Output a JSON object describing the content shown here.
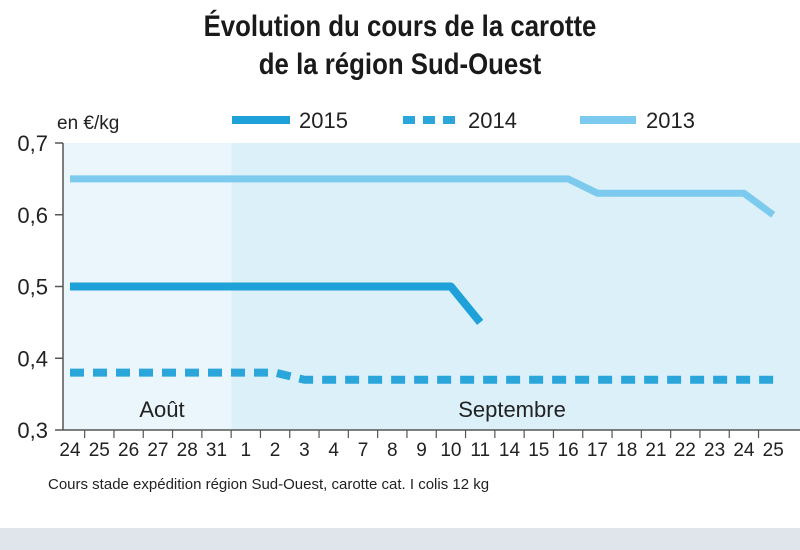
{
  "chart_data": {
    "type": "line",
    "title": [
      "Évolution du cours de la carotte",
      "de la région Sud-Ouest"
    ],
    "unit": "en €/kg",
    "categories": [
      "24",
      "25",
      "26",
      "27",
      "28",
      "31",
      "1",
      "2",
      "3",
      "4",
      "7",
      "8",
      "9",
      "10",
      "11",
      "14",
      "15",
      "16",
      "17",
      "18",
      "21",
      "22",
      "23",
      "24",
      "25"
    ],
    "months": [
      {
        "label": "Août",
        "from": 0,
        "to": 5
      },
      {
        "label": "Septembre",
        "from": 6,
        "to": 24
      }
    ],
    "ylim": [
      0.3,
      0.7
    ],
    "yticks": [
      "0,3",
      "0,4",
      "0,5",
      "0,6",
      "0,7"
    ],
    "yticks_values": [
      0.3,
      0.4,
      0.5,
      0.6,
      0.7
    ],
    "series": [
      {
        "name": "2015",
        "style": "solid",
        "color": "#1ea1d8",
        "values": [
          0.5,
          0.5,
          0.5,
          0.5,
          0.5,
          0.5,
          0.5,
          0.5,
          0.5,
          0.5,
          0.5,
          0.5,
          0.5,
          0.5,
          0.45,
          null,
          null,
          null,
          null,
          null,
          null,
          null,
          null,
          null,
          null
        ]
      },
      {
        "name": "2014",
        "style": "dashed",
        "color": "#2aa6da",
        "values": [
          0.38,
          0.38,
          0.38,
          0.38,
          0.38,
          0.38,
          0.38,
          0.38,
          0.37,
          0.37,
          0.37,
          0.37,
          0.37,
          0.37,
          0.37,
          0.37,
          0.37,
          0.37,
          0.37,
          0.37,
          0.37,
          0.37,
          0.37,
          0.37,
          0.37
        ]
      },
      {
        "name": "2013",
        "style": "solid",
        "color": "#7ccbee",
        "values": [
          0.65,
          0.65,
          0.65,
          0.65,
          0.65,
          0.65,
          0.65,
          0.65,
          0.65,
          0.65,
          0.65,
          0.65,
          0.65,
          0.65,
          0.65,
          0.65,
          0.65,
          0.65,
          0.63,
          0.63,
          0.63,
          0.63,
          0.63,
          0.63,
          0.6
        ]
      }
    ],
    "footnote": "Cours stade expédition région Sud-Ouest, carotte cat. I colis 12 kg",
    "colors": {
      "aout_bg": "#eaf5fc",
      "sept_bg": "#dcf0fa",
      "axis": "#555555"
    }
  }
}
